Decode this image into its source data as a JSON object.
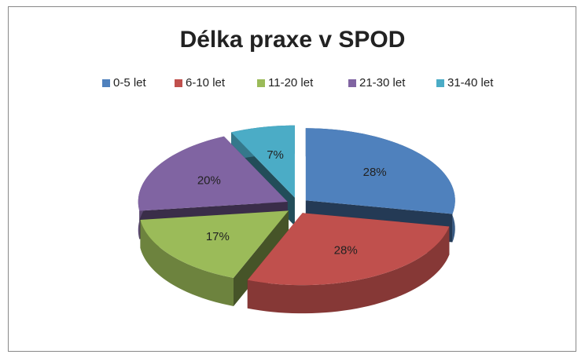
{
  "chart_data": {
    "type": "pie",
    "title": "Délka praxe v SPOD",
    "categories": [
      "0-5 let",
      "6-10 let",
      "11-20 let",
      "21-30 let",
      "31-40 let"
    ],
    "values": [
      28,
      28,
      17,
      20,
      7
    ],
    "value_labels": [
      "28%",
      "28%",
      "17%",
      "20%",
      "7%"
    ],
    "colors": [
      "#4f81bd",
      "#c0504d",
      "#9bbb59",
      "#8064a2",
      "#4bacc6"
    ],
    "legend": "top"
  }
}
